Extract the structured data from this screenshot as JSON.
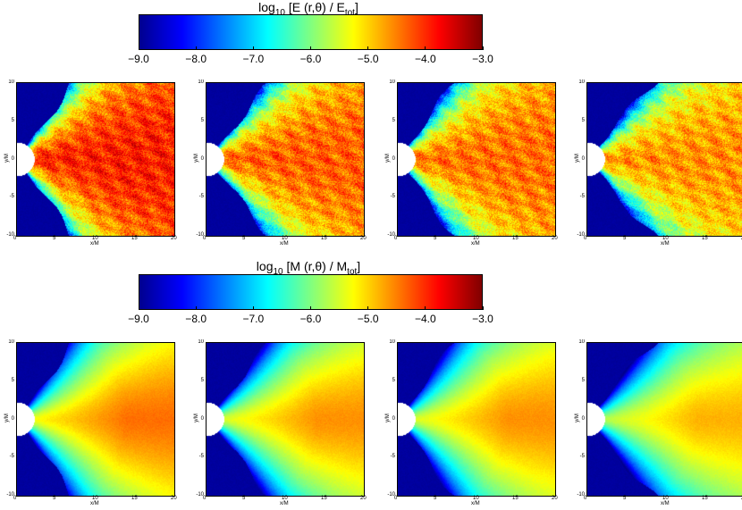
{
  "colorbars": [
    {
      "title_main": "log",
      "title_sub": "10",
      "title_rest": " [E (r,θ) / E",
      "title_rest_sub": "tot",
      "title_end": "]",
      "ticks": [
        "−9.0",
        "−8.0",
        "−7.0",
        "−6.0",
        "−5.0",
        "−4.0",
        "−3.0"
      ]
    },
    {
      "title_main": "log",
      "title_sub": "10",
      "title_rest": " [M (r,θ) / M",
      "title_rest_sub": "tot",
      "title_end": "]",
      "ticks": [
        "−9.0",
        "−8.0",
        "−7.0",
        "−6.0",
        "−5.0",
        "−4.0",
        "−3.0"
      ]
    }
  ],
  "colormap": [
    "#00008f",
    "#0000ff",
    "#0080ff",
    "#00ffff",
    "#80ff80",
    "#ffff00",
    "#ff8000",
    "#ff0000",
    "#800000"
  ],
  "chart_data": {
    "type": "heatmap",
    "xlabel": "x/M",
    "ylabel": "y/M",
    "x_ticks": [
      "0",
      "5",
      "10",
      "15",
      "20"
    ],
    "y_ticks": [
      "10",
      "5",
      "0",
      "-5",
      "-10"
    ],
    "xlim": [
      0,
      20
    ],
    "ylim": [
      -10,
      10
    ],
    "color_range": [
      -9.0,
      -3.0
    ],
    "rows": [
      {
        "quantity": "energy",
        "panels": 4,
        "core_level": [
          -3.9,
          -4.3,
          -4.4,
          -4.6
        ]
      },
      {
        "quantity": "mass",
        "panels": 4,
        "core_level": [
          -4.2,
          -4.4,
          -4.4,
          -4.6
        ]
      }
    ]
  }
}
